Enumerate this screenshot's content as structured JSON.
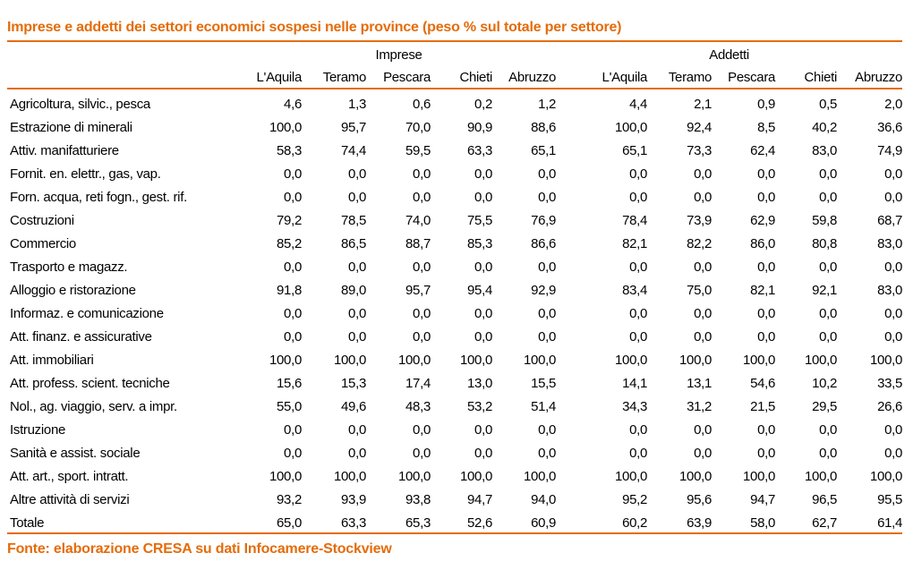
{
  "title": "Imprese e addetti dei settori economici sospesi nelle province (peso % sul totale per settore)",
  "groups": [
    "Imprese",
    "Addetti"
  ],
  "columns": [
    "L'Aquila",
    "Teramo",
    "Pescara",
    "Chieti",
    "Abruzzo",
    "L'Aquila",
    "Teramo",
    "Pescara",
    "Chieti",
    "Abruzzo"
  ],
  "rows": [
    {
      "label": "Agricoltura, silvic., pesca",
      "values": [
        "4,6",
        "1,3",
        "0,6",
        "0,2",
        "1,2",
        "4,4",
        "2,1",
        "0,9",
        "0,5",
        "2,0"
      ]
    },
    {
      "label": "Estrazione di minerali",
      "values": [
        "100,0",
        "95,7",
        "70,0",
        "90,9",
        "88,6",
        "100,0",
        "92,4",
        "8,5",
        "40,2",
        "36,6"
      ]
    },
    {
      "label": "Attiv. manifatturiere",
      "values": [
        "58,3",
        "74,4",
        "59,5",
        "63,3",
        "65,1",
        "65,1",
        "73,3",
        "62,4",
        "83,0",
        "74,9"
      ]
    },
    {
      "label": "Fornit. en. elettr., gas, vap.",
      "values": [
        "0,0",
        "0,0",
        "0,0",
        "0,0",
        "0,0",
        "0,0",
        "0,0",
        "0,0",
        "0,0",
        "0,0"
      ]
    },
    {
      "label": "Forn. acqua, reti fogn., gest. rif.",
      "values": [
        "0,0",
        "0,0",
        "0,0",
        "0,0",
        "0,0",
        "0,0",
        "0,0",
        "0,0",
        "0,0",
        "0,0"
      ]
    },
    {
      "label": "Costruzioni",
      "values": [
        "79,2",
        "78,5",
        "74,0",
        "75,5",
        "76,9",
        "78,4",
        "73,9",
        "62,9",
        "59,8",
        "68,7"
      ]
    },
    {
      "label": "Commercio",
      "values": [
        "85,2",
        "86,5",
        "88,7",
        "85,3",
        "86,6",
        "82,1",
        "82,2",
        "86,0",
        "80,8",
        "83,0"
      ]
    },
    {
      "label": "Trasporto e magazz.",
      "values": [
        "0,0",
        "0,0",
        "0,0",
        "0,0",
        "0,0",
        "0,0",
        "0,0",
        "0,0",
        "0,0",
        "0,0"
      ]
    },
    {
      "label": "Alloggio e ristorazione",
      "values": [
        "91,8",
        "89,0",
        "95,7",
        "95,4",
        "92,9",
        "83,4",
        "75,0",
        "82,1",
        "92,1",
        "83,0"
      ]
    },
    {
      "label": "Informaz. e comunicazione",
      "values": [
        "0,0",
        "0,0",
        "0,0",
        "0,0",
        "0,0",
        "0,0",
        "0,0",
        "0,0",
        "0,0",
        "0,0"
      ]
    },
    {
      "label": "Att. finanz. e assicurative",
      "values": [
        "0,0",
        "0,0",
        "0,0",
        "0,0",
        "0,0",
        "0,0",
        "0,0",
        "0,0",
        "0,0",
        "0,0"
      ]
    },
    {
      "label": "Att. immobiliari",
      "values": [
        "100,0",
        "100,0",
        "100,0",
        "100,0",
        "100,0",
        "100,0",
        "100,0",
        "100,0",
        "100,0",
        "100,0"
      ]
    },
    {
      "label": "Att. profess. scient. tecniche",
      "values": [
        "15,6",
        "15,3",
        "17,4",
        "13,0",
        "15,5",
        "14,1",
        "13,1",
        "54,6",
        "10,2",
        "33,5"
      ]
    },
    {
      "label": "Nol., ag. viaggio, serv. a impr.",
      "values": [
        "55,0",
        "49,6",
        "48,3",
        "53,2",
        "51,4",
        "34,3",
        "31,2",
        "21,5",
        "29,5",
        "26,6"
      ]
    },
    {
      "label": "Istruzione",
      "values": [
        "0,0",
        "0,0",
        "0,0",
        "0,0",
        "0,0",
        "0,0",
        "0,0",
        "0,0",
        "0,0",
        "0,0"
      ]
    },
    {
      "label": "Sanità e assist. sociale",
      "values": [
        "0,0",
        "0,0",
        "0,0",
        "0,0",
        "0,0",
        "0,0",
        "0,0",
        "0,0",
        "0,0",
        "0,0"
      ]
    },
    {
      "label": "Att. art., sport. intratt.",
      "values": [
        "100,0",
        "100,0",
        "100,0",
        "100,0",
        "100,0",
        "100,0",
        "100,0",
        "100,0",
        "100,0",
        "100,0"
      ]
    },
    {
      "label": "Altre attività di servizi",
      "values": [
        "93,2",
        "93,9",
        "93,8",
        "94,7",
        "94,0",
        "95,2",
        "95,6",
        "94,7",
        "96,5",
        "95,5"
      ]
    },
    {
      "label": "Totale",
      "values": [
        "65,0",
        "63,3",
        "65,3",
        "52,6",
        "60,9",
        "60,2",
        "63,9",
        "58,0",
        "62,7",
        "61,4"
      ]
    }
  ],
  "footer": "Fonte: elaborazione CRESA su dati Infocamere-Stockview",
  "colors": {
    "accent": "#E46C0A"
  }
}
